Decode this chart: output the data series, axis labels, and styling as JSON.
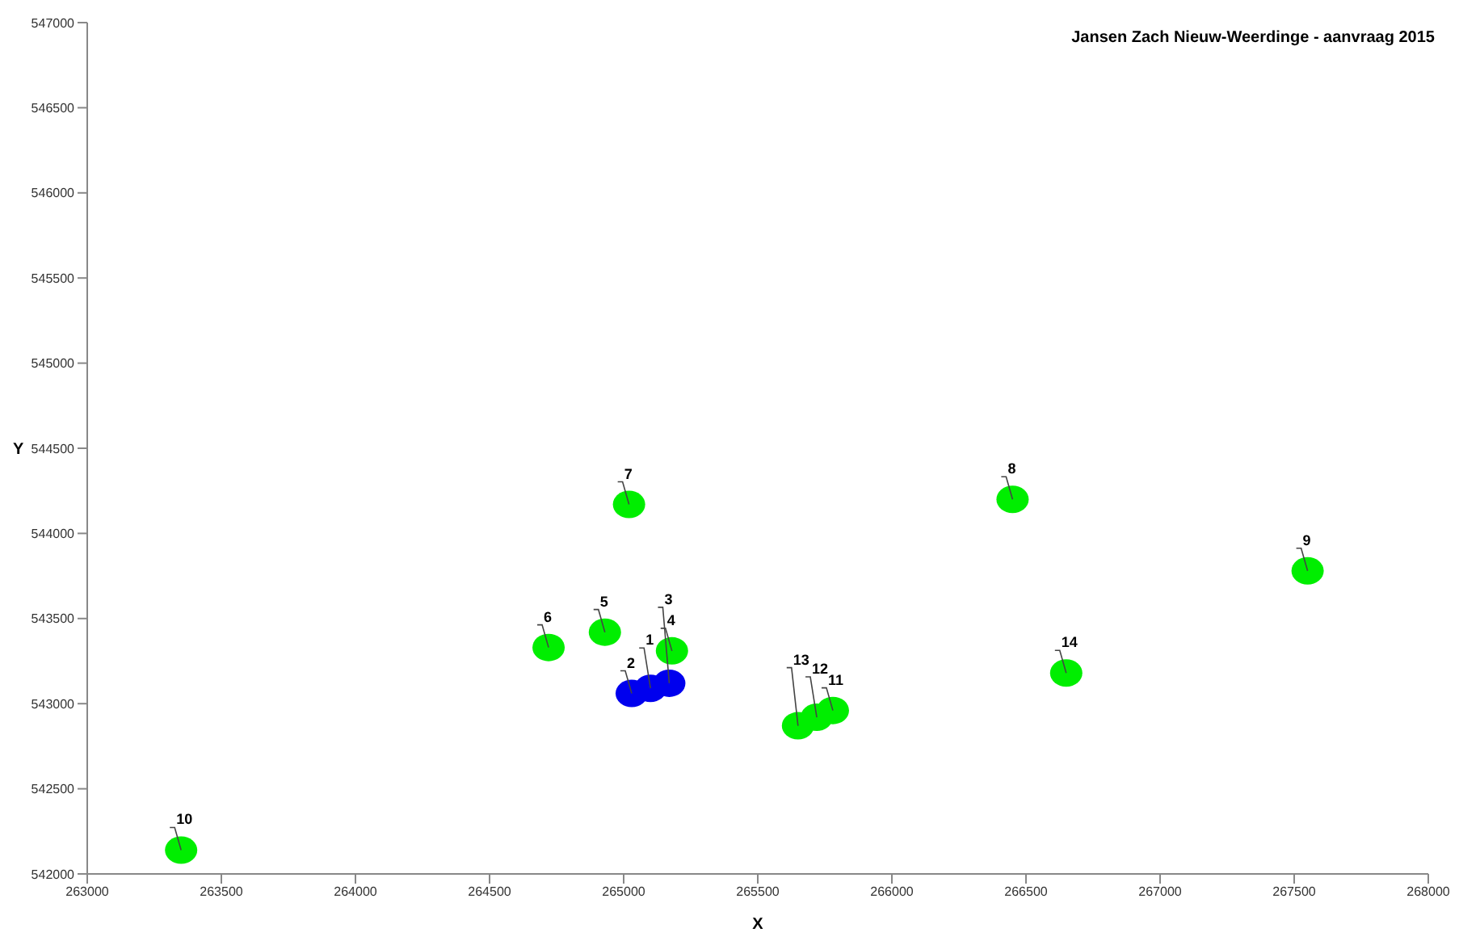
{
  "chart_data": {
    "type": "scatter",
    "title": "Jansen Zach Nieuw-Weerdinge - aanvraag 2015",
    "xlabel": "X",
    "ylabel": "Y",
    "xlim": [
      263000,
      268000
    ],
    "xticks": [
      263000,
      263500,
      264000,
      264500,
      265000,
      265500,
      266000,
      266500,
      267000,
      267500,
      268000
    ],
    "ylim": [
      542000,
      547000
    ],
    "yticks": [
      542000,
      542500,
      543000,
      543500,
      544000,
      544500,
      545000,
      545500,
      546000,
      546500,
      547000
    ],
    "grid": false,
    "legend": false,
    "marker": "circle",
    "series": [
      {
        "color": "#00ee00",
        "x": [
          265180,
          264930,
          264720,
          265020,
          266450,
          267550,
          263350,
          265780,
          265720,
          265650,
          266650
        ],
        "values": [
          543310,
          543420,
          543330,
          544170,
          544200,
          543780,
          542140,
          542960,
          542920,
          542870,
          543180
        ]
      },
      {
        "color": "#0000ee",
        "x": [
          265030,
          265100,
          265170
        ],
        "values": [
          543060,
          543090,
          543120
        ]
      }
    ],
    "annotations": [
      {
        "text": "4",
        "x": 265180,
        "y": 543310
      },
      {
        "text": "5",
        "x": 264930,
        "y": 543420
      },
      {
        "text": "6",
        "x": 264720,
        "y": 543330
      },
      {
        "text": "7",
        "x": 265020,
        "y": 544170
      },
      {
        "text": "8",
        "x": 266450,
        "y": 544200
      },
      {
        "text": "9",
        "x": 267550,
        "y": 543780
      },
      {
        "text": "10",
        "x": 263350,
        "y": 542140
      },
      {
        "text": "11",
        "x": 265780,
        "y": 542960
      },
      {
        "text": "12",
        "x": 265720,
        "y": 542920
      },
      {
        "text": "13",
        "x": 265650,
        "y": 542870
      },
      {
        "text": "14",
        "x": 266650,
        "y": 543180
      },
      {
        "text": "2",
        "x": 265030,
        "y": 543060
      },
      {
        "text": "1",
        "x": 265100,
        "y": 543090
      },
      {
        "text": "3",
        "x": 265170,
        "y": 543120
      }
    ]
  }
}
